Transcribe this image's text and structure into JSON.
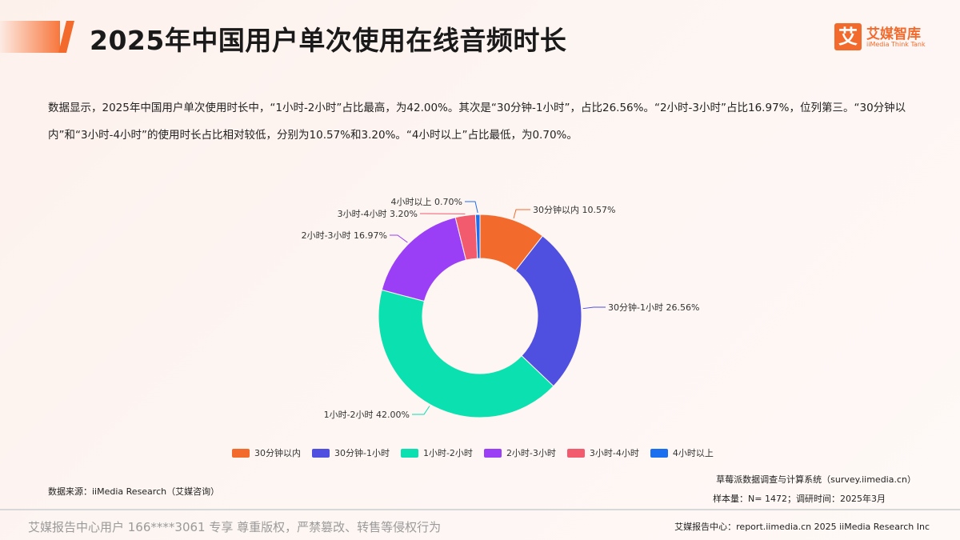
{
  "header": {
    "title": "2025年中国用户单次使用在线音频时长",
    "logo_mark": "艾",
    "logo_cn": "艾媒智库",
    "logo_en": "iiMedia Think Tank"
  },
  "summary": "数据显示，2025年中国用户单次使用时长中，“1小时-2小时”占比最高，为42.00%。其次是“30分钟-1小时”，占比26.56%。“2小时-3小时”占比16.97%，位列第三。“30分钟以内”和“3小时-4小时”的使用时长占比相对较低，分别为10.57%和3.20%。“4小时以上”占比最低，为0.70%。",
  "chart_data": {
    "type": "pie",
    "donut": true,
    "start": "top, clockwise",
    "categories": [
      "30分钟以内",
      "30分钟-1小时",
      "1小时-2小时",
      "2小时-3小时",
      "3小时-4小时",
      "4小时以上"
    ],
    "values": [
      10.57,
      26.56,
      42.0,
      16.97,
      3.2,
      0.7
    ],
    "data_labels": [
      "30分钟以内 10.57%",
      "30分钟-1小时 26.56%",
      "1小时-2小时 42.00%",
      "2小时-3小时 16.97%",
      "3小时-4小时 3.20%",
      "4小时以上 0.70%"
    ],
    "colors": [
      "#f26b2d",
      "#5050e0",
      "#0be0b0",
      "#9a3ff5",
      "#f25a6e",
      "#1a6ef0"
    ],
    "legend": "bottom"
  },
  "footer": {
    "source": "数据来源：iiMedia Research（艾媒咨询）",
    "system": "草莓派数据调查与计算系统（survey.iimedia.cn）",
    "sample": "样本量：N= 1472；调研时间：2025年3月",
    "watermark": "艾媒报告中心用户 166****3061 专享 尊重版权，严禁篡改、转售等侵权行为",
    "report_center": "艾媒报告中心：report.iimedia.cn    2025 iiMedia Research Inc"
  }
}
